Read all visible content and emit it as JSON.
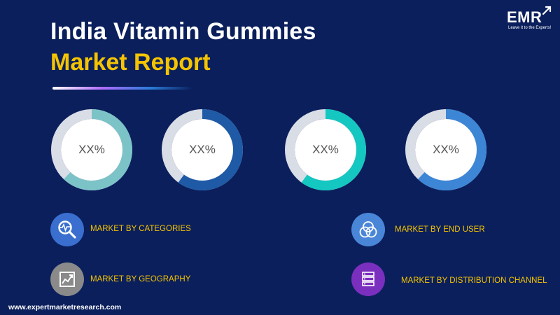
{
  "header": {
    "title_line1": "India Vitamin Gummies",
    "title_line2": "Market Report"
  },
  "logo": {
    "name": "EMR",
    "tagline": "Leave it to the Experts!"
  },
  "donuts": [
    {
      "label": "XX%",
      "fraction": 0.62,
      "color": "#7cc3c8"
    },
    {
      "label": "XX%",
      "fraction": 0.6,
      "color": "#1f5aa6"
    },
    {
      "label": "XX%",
      "fraction": 0.6,
      "color": "#14c7c0"
    },
    {
      "label": "XX%",
      "fraction": 0.62,
      "color": "#3d86d6"
    }
  ],
  "legend": [
    {
      "label": "MARKET BY CATEGORIES",
      "icon": "magnifier-pulse-icon",
      "color": "#3a6fcf"
    },
    {
      "label": "MARKET  BY GEOGRAPHY",
      "icon": "trend-chart-icon",
      "color": "#8a8a8a"
    },
    {
      "label": "MARKET BY END USER",
      "icon": "venn-circles-icon",
      "color": "#4a86d8"
    },
    {
      "label": "MARKET BY DISTRIBUTION CHANNEL",
      "icon": "server-stack-icon",
      "color": "#7b2fbf"
    }
  ],
  "footer": {
    "website": "www.expertmarketresearch.com"
  },
  "colors": {
    "background": "#0b1f5c",
    "title_primary": "#ffffff",
    "title_accent": "#f5c400",
    "donut_track": "#d9dde6"
  }
}
